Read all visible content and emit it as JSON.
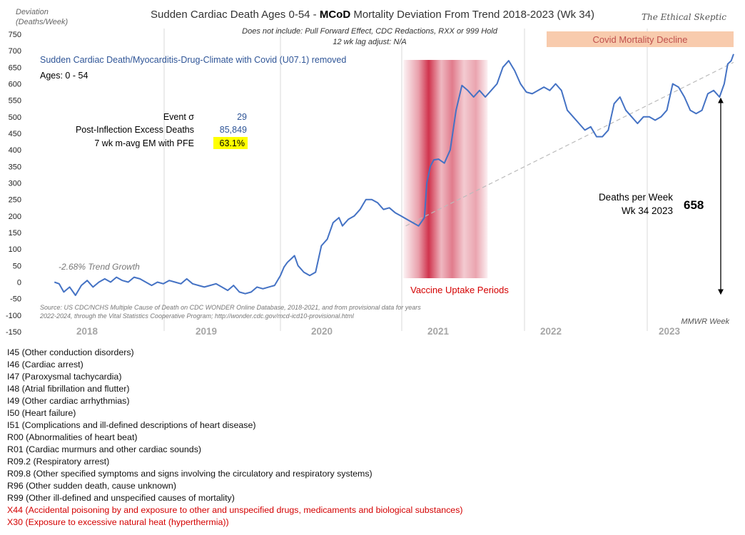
{
  "chart_data": {
    "type": "line",
    "title_prefix": "Sudden Cardiac Death Ages 0-54 - ",
    "title_bold": "MCoD",
    "title_suffix": " Mortality Deviation From Trend  2018-2023 (Wk 34)",
    "subtitle_line1": "Does not include: Pull Forward Effect,  CDC Redactions, RXX or 999 Hold",
    "subtitle_line2": "12 wk lag adjust: N/A",
    "ylabel_line1": "Deviation",
    "ylabel_line2": "(Deaths/Week)",
    "xlabel": "MMWR Week",
    "ylim": [
      -150,
      750
    ],
    "y_ticks": [
      -150,
      -100,
      -50,
      0,
      50,
      100,
      150,
      200,
      250,
      300,
      350,
      400,
      450,
      500,
      550,
      600,
      650,
      700,
      750
    ],
    "year_labels": [
      "2018",
      "2019",
      "2020",
      "2021",
      "2022",
      "2023"
    ],
    "x_range": [
      2017.9,
      2023.72
    ],
    "series": [
      {
        "name": "Sudden Cardiac Death/Myocarditis-Drug-Climate with Covid (U07.1) removed",
        "color": "#4472c4",
        "points": [
          [
            2017.92,
            0
          ],
          [
            2017.96,
            -5
          ],
          [
            2018.0,
            -30
          ],
          [
            2018.05,
            -15
          ],
          [
            2018.1,
            -40
          ],
          [
            2018.15,
            -10
          ],
          [
            2018.2,
            5
          ],
          [
            2018.25,
            -15
          ],
          [
            2018.3,
            0
          ],
          [
            2018.35,
            10
          ],
          [
            2018.4,
            0
          ],
          [
            2018.45,
            15
          ],
          [
            2018.5,
            5
          ],
          [
            2018.55,
            0
          ],
          [
            2018.6,
            15
          ],
          [
            2018.65,
            10
          ],
          [
            2018.7,
            0
          ],
          [
            2018.75,
            -10
          ],
          [
            2018.8,
            0
          ],
          [
            2018.85,
            -5
          ],
          [
            2018.9,
            5
          ],
          [
            2018.95,
            0
          ],
          [
            2019.0,
            -5
          ],
          [
            2019.05,
            10
          ],
          [
            2019.1,
            -5
          ],
          [
            2019.15,
            -10
          ],
          [
            2019.2,
            -15
          ],
          [
            2019.25,
            -10
          ],
          [
            2019.3,
            -5
          ],
          [
            2019.35,
            -15
          ],
          [
            2019.4,
            -25
          ],
          [
            2019.45,
            -10
          ],
          [
            2019.5,
            -30
          ],
          [
            2019.55,
            -35
          ],
          [
            2019.6,
            -30
          ],
          [
            2019.65,
            -15
          ],
          [
            2019.7,
            -20
          ],
          [
            2019.75,
            -15
          ],
          [
            2019.8,
            -10
          ],
          [
            2019.85,
            20
          ],
          [
            2019.88,
            45
          ],
          [
            2019.91,
            60
          ],
          [
            2019.94,
            70
          ],
          [
            2019.97,
            80
          ],
          [
            2020.0,
            50
          ],
          [
            2020.05,
            30
          ],
          [
            2020.1,
            20
          ],
          [
            2020.15,
            30
          ],
          [
            2020.2,
            110
          ],
          [
            2020.25,
            130
          ],
          [
            2020.3,
            180
          ],
          [
            2020.35,
            195
          ],
          [
            2020.38,
            170
          ],
          [
            2020.43,
            190
          ],
          [
            2020.48,
            200
          ],
          [
            2020.53,
            220
          ],
          [
            2020.58,
            250
          ],
          [
            2020.63,
            250
          ],
          [
            2020.68,
            240
          ],
          [
            2020.73,
            220
          ],
          [
            2020.78,
            225
          ],
          [
            2020.83,
            210
          ],
          [
            2020.88,
            200
          ],
          [
            2020.93,
            190
          ],
          [
            2020.98,
            180
          ],
          [
            2021.03,
            170
          ],
          [
            2021.08,
            195
          ],
          [
            2021.1,
            300
          ],
          [
            2021.13,
            350
          ],
          [
            2021.16,
            370
          ],
          [
            2021.2,
            372
          ],
          [
            2021.25,
            360
          ],
          [
            2021.3,
            400
          ],
          [
            2021.35,
            520
          ],
          [
            2021.4,
            595
          ],
          [
            2021.45,
            580
          ],
          [
            2021.5,
            560
          ],
          [
            2021.55,
            580
          ],
          [
            2021.6,
            560
          ],
          [
            2021.65,
            580
          ],
          [
            2021.7,
            600
          ],
          [
            2021.75,
            650
          ],
          [
            2021.8,
            670
          ],
          [
            2021.85,
            640
          ],
          [
            2021.9,
            600
          ],
          [
            2021.95,
            575
          ],
          [
            2022.0,
            570
          ],
          [
            2022.05,
            580
          ],
          [
            2022.1,
            590
          ],
          [
            2022.15,
            580
          ],
          [
            2022.2,
            600
          ],
          [
            2022.25,
            580
          ],
          [
            2022.3,
            520
          ],
          [
            2022.35,
            500
          ],
          [
            2022.4,
            480
          ],
          [
            2022.45,
            460
          ],
          [
            2022.5,
            470
          ],
          [
            2022.55,
            440
          ],
          [
            2022.6,
            440
          ],
          [
            2022.65,
            460
          ],
          [
            2022.7,
            540
          ],
          [
            2022.75,
            560
          ],
          [
            2022.8,
            520
          ],
          [
            2022.85,
            500
          ],
          [
            2022.9,
            480
          ],
          [
            2022.95,
            500
          ],
          [
            2023.0,
            500
          ],
          [
            2023.05,
            490
          ],
          [
            2023.1,
            500
          ],
          [
            2023.15,
            520
          ],
          [
            2023.2,
            600
          ],
          [
            2023.25,
            590
          ],
          [
            2023.3,
            560
          ],
          [
            2023.35,
            520
          ],
          [
            2023.4,
            510
          ],
          [
            2023.45,
            520
          ],
          [
            2023.5,
            570
          ],
          [
            2023.55,
            580
          ],
          [
            2023.6,
            560
          ],
          [
            2023.64,
            600
          ],
          [
            2023.67,
            660
          ],
          [
            2023.7,
            670
          ],
          [
            2023.72,
            690
          ]
        ]
      }
    ],
    "trend_line": {
      "start": [
        2020.92,
        170
      ],
      "end": [
        2023.72,
        665
      ],
      "color": "#bbbbbb"
    },
    "trend_label": "-2.68% Trend Growth",
    "source_line1": "Source: US CDC/NCHS Multiple Cause of Death on CDC WONDER Online Database, 2018-2021, and from provisional data for years",
    "source_line2": "2022-2024, through the Vital Statistics Cooperative Program; http://wonder.cdc.gov/mcd-icd10-provisional.html",
    "vaccine_label": "Vaccine Uptake Periods",
    "vaccine_band": [
      2020.9,
      2021.62
    ],
    "covid_decline_label": "Covid Mortality Decline",
    "stats": [
      {
        "label": "Event σ",
        "value": "29",
        "highlight": false
      },
      {
        "label": "Post-Inflection Excess Deaths",
        "value": "85,849",
        "highlight": false
      },
      {
        "label": "7 wk m-avg EM with PFE",
        "value": "63.1%",
        "highlight": true
      }
    ],
    "ages_label": "Ages: 0 - 54",
    "deaths_label_line1": "Deaths per Week",
    "deaths_label_line2": "Wk 34 2023",
    "deaths_value": "658",
    "arrow_range": [
      -30,
      550
    ],
    "brand": "The Ethical Skeptic",
    "colors": {
      "series": "#4472c4",
      "vaccine": "#c8102e",
      "covid_band": "#f8cbad",
      "covid_text": "#c0504d",
      "highlight": "#ffff00",
      "grid": "#d9d9d9"
    }
  },
  "codes": [
    {
      "text": "I45 (Other conduction  disorders)",
      "red": false
    },
    {
      "text": "I46 (Cardiac arrest)",
      "red": false
    },
    {
      "text": "I47 (Paroxysmal tachycardia)",
      "red": false
    },
    {
      "text": "I48 (Atrial fibrillation  and flutter)",
      "red": false
    },
    {
      "text": "I49 (Other cardiac arrhythmias)",
      "red": false
    },
    {
      "text": "I50 (Heart failure)",
      "red": false
    },
    {
      "text": "I51 (Complications  and ill-defined  descriptions of heart disease)",
      "red": false
    },
    {
      "text": "R00 (Abnormalities of heart beat)",
      "red": false
    },
    {
      "text": "R01 (Cardiac murmurs and other cardiac sounds)",
      "red": false
    },
    {
      "text": "R09.2 (Respiratory arrest)",
      "red": false
    },
    {
      "text": "R09.8 (Other specified  symptoms and signs involving  the circulatory and respiratory systems)",
      "red": false
    },
    {
      "text": "R96 (Other sudden death, cause unknown)",
      "red": false
    },
    {
      "text": "R99 (Other ill-defined  and unspecified  causes of mortality)",
      "red": false
    },
    {
      "text": "X44 (Accidental poisoning  by and exposure to other and unspecified  drugs, medicaments and biological substances)",
      "red": true
    },
    {
      "text": "X30 (Exposure to excessive natural heat (hyperthermia))",
      "red": true
    }
  ]
}
